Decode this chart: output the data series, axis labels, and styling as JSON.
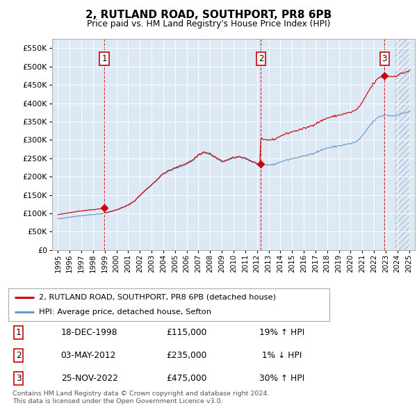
{
  "title": "2, RUTLAND ROAD, SOUTHPORT, PR8 6PB",
  "subtitle": "Price paid vs. HM Land Registry's House Price Index (HPI)",
  "property_label": "2, RUTLAND ROAD, SOUTHPORT, PR8 6PB (detached house)",
  "hpi_label": "HPI: Average price, detached house, Sefton",
  "sale_points": [
    {
      "date_year": 1998.96,
      "price": 115000,
      "label": "1",
      "date_str": "18-DEC-1998",
      "pct_str": "19% ↑ HPI"
    },
    {
      "date_year": 2012.34,
      "price": 235000,
      "label": "2",
      "date_str": "03-MAY-2012",
      "pct_str": " 1% ↓ HPI"
    },
    {
      "date_year": 2022.9,
      "price": 475000,
      "label": "3",
      "date_str": "25-NOV-2022",
      "pct_str": "30% ↑ HPI"
    }
  ],
  "price_strs": [
    "£115,000",
    "£235,000",
    "£475,000"
  ],
  "ylim": [
    0,
    575000
  ],
  "yticks": [
    0,
    50000,
    100000,
    150000,
    200000,
    250000,
    300000,
    350000,
    400000,
    450000,
    500000,
    550000
  ],
  "xlim_start": 1994.5,
  "xlim_end": 2025.5,
  "xtick_start": 1995,
  "xtick_end": 2025,
  "background_color": "#dce9f5",
  "line_color_property": "#cc0000",
  "line_color_hpi": "#6699cc",
  "sale_marker_color": "#cc0000",
  "sale_vline_color": "#cc0000",
  "footer_text": "Contains HM Land Registry data © Crown copyright and database right 2024.\nThis data is licensed under the Open Government Licence v3.0.",
  "number_box_edgecolor": "#cc0000",
  "legend_border_color": "#aaaaaa",
  "chart_border_color": "#aaaaaa",
  "grid_color": "#ffffff",
  "hatch_color": "#9999bb",
  "future_hatch_start": 2023.75,
  "title_fontsize": 11,
  "subtitle_fontsize": 9
}
